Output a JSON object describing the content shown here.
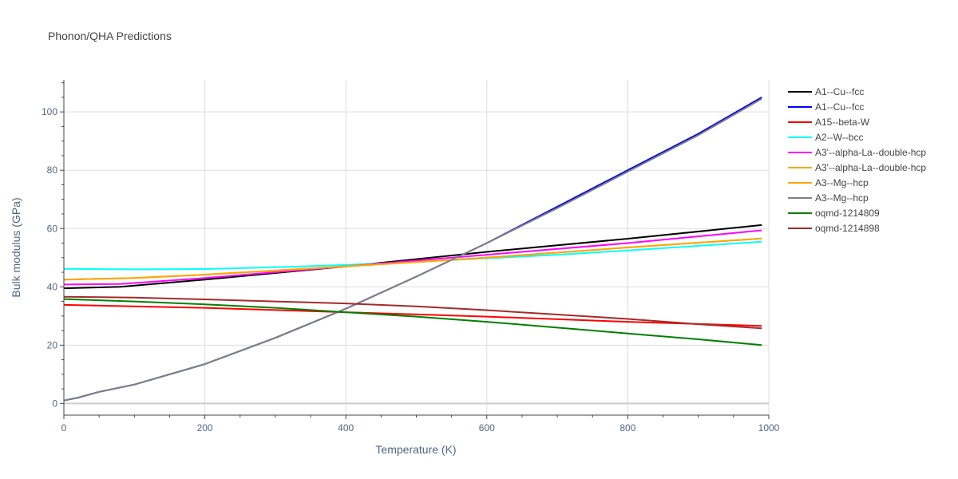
{
  "chart_data": {
    "type": "line",
    "title": "Phonon/QHA Predictions",
    "xlabel": "Temperature (K)",
    "ylabel": "Bulk modulus (GPa)",
    "xlim": [
      0,
      1000
    ],
    "ylim": [
      -4,
      111
    ],
    "xticks": [
      0,
      200,
      400,
      600,
      800,
      1000
    ],
    "yticks": [
      0,
      20,
      40,
      60,
      80,
      100
    ],
    "grid": true,
    "legend_position": "right",
    "series": [
      {
        "name": "A1--Cu--fcc",
        "color": "#000000",
        "x": [
          0,
          80,
          200,
          400,
          600,
          800,
          990
        ],
        "y": [
          39.5,
          40,
          42.5,
          47,
          52,
          56.5,
          61.2
        ]
      },
      {
        "name": "A1--Cu--fcc",
        "color": "#0000ff",
        "x": [
          0,
          20,
          50,
          100,
          200,
          300,
          400,
          500,
          600,
          700,
          800,
          900,
          990
        ],
        "y": [
          1,
          2,
          4,
          6.5,
          13.5,
          22.5,
          32.5,
          43.5,
          55,
          67.5,
          80,
          92.5,
          105
        ]
      },
      {
        "name": "A15--beta-W",
        "color": "#ff0000",
        "x": [
          0,
          200,
          400,
          600,
          800,
          990
        ],
        "y": [
          33.8,
          32.8,
          31.3,
          29.8,
          28,
          26.6
        ]
      },
      {
        "name": "A2--W--bcc",
        "color": "#00ffff",
        "x": [
          0,
          100,
          200,
          300,
          400,
          500,
          600,
          700,
          800,
          990
        ],
        "y": [
          46.2,
          46,
          46.1,
          46.7,
          47.5,
          48.6,
          49.8,
          51,
          52.5,
          55.5
        ]
      },
      {
        "name": "A3'--alpha-La--double-hcp",
        "color": "#ff00ff",
        "x": [
          0,
          80,
          200,
          400,
          600,
          800,
          990
        ],
        "y": [
          40.8,
          41,
          43,
          47,
          51,
          55,
          59.4
        ]
      },
      {
        "name": "A3'--alpha-La--double-hcp",
        "color": "#ffa500",
        "x": [
          0,
          100,
          200,
          400,
          600,
          800,
          990
        ],
        "y": [
          42.5,
          43,
          44.2,
          47,
          50,
          53.5,
          56.6
        ]
      },
      {
        "name": "A3--Mg--hcp",
        "color": "#ffa500",
        "x": [
          0,
          100,
          200,
          400,
          600,
          800,
          990
        ],
        "y": [
          42.5,
          43,
          44.2,
          47,
          50,
          53.5,
          56.6
        ]
      },
      {
        "name": "A3--Mg--hcp",
        "color": "#808080",
        "x": [
          0,
          20,
          50,
          100,
          200,
          300,
          400,
          500,
          600,
          700,
          800,
          900,
          990
        ],
        "y": [
          1,
          2,
          4,
          6.5,
          13.5,
          22.5,
          32.5,
          43.5,
          55,
          67,
          79.5,
          92,
          104.5
        ]
      },
      {
        "name": "oqmd-1214809",
        "color": "#008000",
        "x": [
          0,
          100,
          200,
          300,
          400,
          500,
          600,
          700,
          800,
          900,
          990
        ],
        "y": [
          35.8,
          35,
          34,
          32.8,
          31.3,
          29.8,
          28,
          26,
          24,
          22,
          20
        ]
      },
      {
        "name": "oqmd-1214898",
        "color": "#a52a2a",
        "x": [
          0,
          100,
          200,
          300,
          400,
          500,
          600,
          700,
          800,
          900,
          990
        ],
        "y": [
          36.6,
          36.3,
          35.7,
          35,
          34.3,
          33.3,
          32,
          30.5,
          29,
          27.2,
          25.8
        ]
      }
    ]
  }
}
